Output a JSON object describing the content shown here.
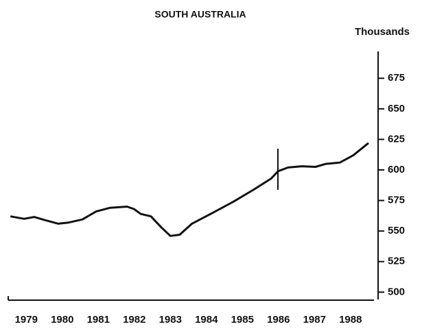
{
  "chart_data": {
    "type": "line",
    "title": "SOUTH AUSTRALIA",
    "y_axis_label": "Thousands",
    "x": [
      1979.06,
      1979.44,
      1979.72,
      1980.01,
      1980.39,
      1980.68,
      1981.06,
      1981.44,
      1981.82,
      1982.3,
      1982.49,
      1982.68,
      1982.96,
      1983.25,
      1983.5,
      1983.76,
      1984.1,
      1984.68,
      1985.25,
      1985.82,
      1986.3,
      1986.49,
      1986.77,
      1987.15,
      1987.53,
      1987.82,
      1988.2,
      1988.58,
      1989.0
    ],
    "series": [
      {
        "color": "#111111",
        "values": [
          562,
          560,
          561.5,
          559,
          556,
          557,
          559.5,
          566,
          569,
          570,
          568,
          564,
          562,
          553,
          546,
          547,
          556,
          565,
          574,
          584,
          593,
          599,
          602,
          603,
          602.5,
          605,
          606,
          612,
          622
        ]
      }
    ],
    "xlim": [
      1979,
      1989
    ],
    "xticks": [
      1979,
      1980,
      1981,
      1982,
      1983,
      1984,
      1985,
      1986,
      1987,
      1988
    ],
    "ylim": [
      494,
      697
    ],
    "yticks": [
      500,
      525,
      550,
      575,
      600,
      625,
      650,
      675
    ],
    "y_axis_side": "right",
    "grid": false
  }
}
